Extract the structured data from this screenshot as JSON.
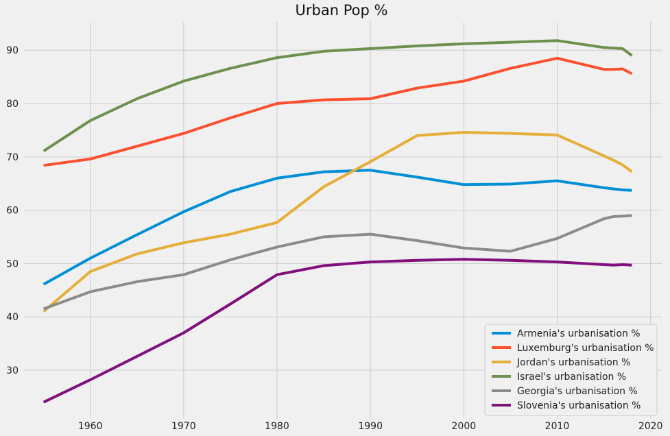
{
  "chart_data": {
    "type": "line",
    "title": "Urban Pop %",
    "xlabel": "",
    "ylabel": "",
    "xlim": [
      1952.9,
      2021.2
    ],
    "ylim": [
      21,
      95.3
    ],
    "x_ticks": [
      1960,
      1970,
      1980,
      1990,
      2000,
      2010,
      2020
    ],
    "y_ticks": [
      30,
      40,
      50,
      60,
      70,
      80,
      90
    ],
    "grid": true,
    "legend_position": "lower-right",
    "series": [
      {
        "name": "Armenia's urbanisation %",
        "color": "#008fd5",
        "x": [
          1955,
          1960,
          1965,
          1970,
          1975,
          1980,
          1985,
          1990,
          1995,
          2000,
          2005,
          2010,
          2015,
          2016,
          2017,
          2018
        ],
        "y": [
          46.1,
          51.0,
          55.4,
          59.7,
          63.5,
          66.0,
          67.2,
          67.5,
          66.2,
          64.8,
          64.9,
          65.5,
          64.2,
          64.0,
          63.8,
          63.7
        ]
      },
      {
        "name": "Luxemburg's urbanisation %",
        "color": "#fc4f30",
        "x": [
          1955,
          1960,
          1965,
          1970,
          1975,
          1980,
          1985,
          1990,
          1995,
          2000,
          2005,
          2010,
          2015,
          2016,
          2017,
          2018
        ],
        "y": [
          68.4,
          69.6,
          72.0,
          74.4,
          77.3,
          80.0,
          80.7,
          80.9,
          82.9,
          84.2,
          86.6,
          88.5,
          86.4,
          86.4,
          86.5,
          85.6
        ]
      },
      {
        "name": "Jordan's urbanisation %",
        "color": "#e5ae38",
        "x": [
          1955,
          1960,
          1965,
          1970,
          1975,
          1980,
          1985,
          1990,
          1995,
          2000,
          2005,
          2010,
          2015,
          2016,
          2017,
          2018
        ],
        "y": [
          41.0,
          48.5,
          51.8,
          53.9,
          55.5,
          57.7,
          64.4,
          69.1,
          74.0,
          74.6,
          74.4,
          74.1,
          70.2,
          69.4,
          68.5,
          67.2
        ]
      },
      {
        "name": "Israel's urbanisation %",
        "color": "#6d904f",
        "x": [
          1955,
          1960,
          1965,
          1970,
          1975,
          1980,
          1985,
          1990,
          1995,
          2000,
          2005,
          2010,
          2015,
          2016,
          2017,
          2018
        ],
        "y": [
          71.1,
          76.8,
          80.9,
          84.2,
          86.6,
          88.6,
          89.8,
          90.3,
          90.8,
          91.2,
          91.5,
          91.8,
          90.5,
          90.4,
          90.3,
          89.0
        ]
      },
      {
        "name": "Georgia's urbanisation %",
        "color": "#8b8b8b",
        "x": [
          1955,
          1960,
          1965,
          1970,
          1975,
          1980,
          1985,
          1990,
          1995,
          2000,
          2005,
          2010,
          2015,
          2016,
          2017,
          2018
        ],
        "y": [
          41.5,
          44.7,
          46.6,
          47.9,
          50.7,
          53.1,
          55.0,
          55.5,
          54.3,
          52.9,
          52.3,
          54.7,
          58.4,
          58.8,
          58.9,
          59.0
        ]
      },
      {
        "name": "Slovenia's urbanisation %",
        "color": "#810f7c",
        "x": [
          1955,
          1960,
          1965,
          1970,
          1975,
          1980,
          1985,
          1990,
          1995,
          2000,
          2005,
          2010,
          2015,
          2016,
          2017,
          2018
        ],
        "y": [
          24.0,
          28.2,
          32.6,
          37.0,
          42.4,
          47.9,
          49.6,
          50.3,
          50.6,
          50.8,
          50.6,
          50.3,
          49.8,
          49.7,
          49.8,
          49.7
        ]
      }
    ]
  }
}
